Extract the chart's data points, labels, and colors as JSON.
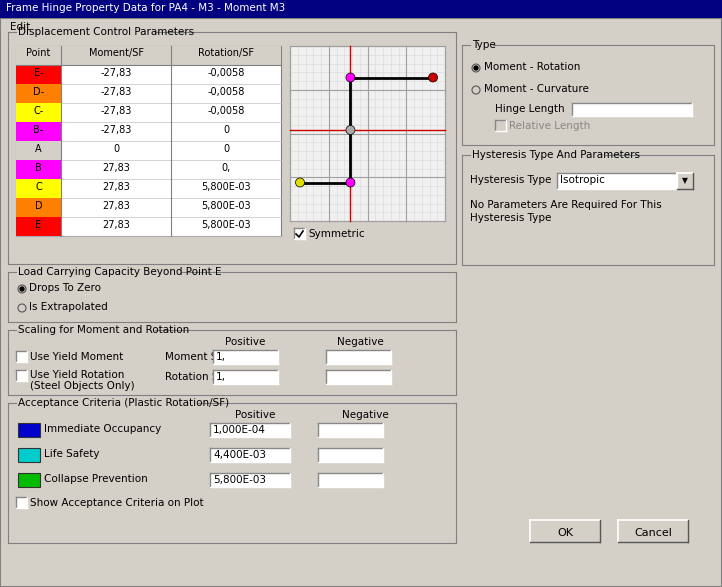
{
  "title": "Frame Hinge Property Data for PA4 - M3 - Moment M3",
  "bg_color": "#d4d0c8",
  "table_rows": [
    {
      "point": "E-",
      "moment": "-27,83",
      "rotation": "-0,0058",
      "color": "#ff0000"
    },
    {
      "point": "D-",
      "moment": "-27,83",
      "rotation": "-0,0058",
      "color": "#ff8000"
    },
    {
      "point": "C-",
      "moment": "-27,83",
      "rotation": "-0,0058",
      "color": "#ffff00"
    },
    {
      "point": "B-",
      "moment": "-27,83",
      "rotation": "0",
      "color": "#ff00ff"
    },
    {
      "point": "A",
      "moment": "0",
      "rotation": "0",
      "color": "#d4d0c8"
    },
    {
      "point": "B",
      "moment": "27,83",
      "rotation": "0,",
      "color": "#ff00ff"
    },
    {
      "point": "C",
      "moment": "27,83",
      "rotation": "5,800E-03",
      "color": "#ffff00"
    },
    {
      "point": "D",
      "moment": "27,83",
      "rotation": "5,800E-03",
      "color": "#ff8000"
    },
    {
      "point": "E",
      "moment": "27,83",
      "rotation": "5,800E-03",
      "color": "#ff0000"
    }
  ],
  "acceptance_criteria": [
    {
      "label": "Immediate Occupancy",
      "value": "1,000E-04",
      "color": "#0000cc"
    },
    {
      "label": "Life Safety",
      "value": "4,400E-03",
      "color": "#00cccc"
    },
    {
      "label": "Collapse Prevention",
      "value": "5,800E-03",
      "color": "#00bb00"
    }
  ]
}
